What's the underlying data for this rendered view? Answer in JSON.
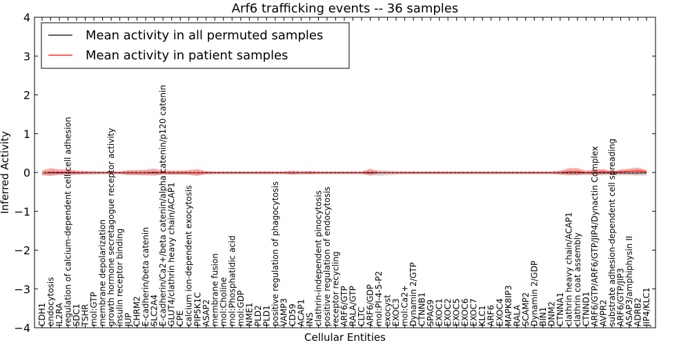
{
  "chart_data": {
    "type": "line",
    "title": "Arf6 trafficking events -- 36 samples",
    "xlabel": "Cellular Entities",
    "ylabel": "Inferred Activity",
    "ylim": [
      -4,
      4
    ],
    "yticks": [
      -4,
      -3,
      -2,
      -1,
      0,
      1,
      2,
      3,
      4
    ],
    "ytick_labels": [
      "−4",
      "−3",
      "−2",
      "−1",
      "0",
      "1",
      "2",
      "3",
      "4"
    ],
    "grid": false,
    "legend_position": "top-left",
    "categories": [
      "CDH1",
      "endocytosis",
      "IL2RA",
      "regulation of calcium-dependent cell-cell adhesion",
      "SDC1",
      "TSHR",
      "mol:GTP",
      "membrane depolarization",
      "growth hormone secretagogue receptor activity",
      "insulin receptor binding",
      "JUP",
      "CHRM2",
      "E-cadherin/beta catenin",
      "SLC2A4",
      "E-cadherin/Ca2+/beta catenin/alpha catenin/p120 catenin",
      "GLUT4/clathrin heavy chain/ACAP1",
      "CPE",
      "calcium ion-dependent exocytosis",
      "PIP5K1C",
      "ASAP2",
      "membrane fusion",
      "mol:Choline",
      "mol:Phosphatidic acid",
      "mol:GDP",
      "NME1",
      "PLD2",
      "PLD1",
      "positive regulation of phagocytosis",
      "VAMP3",
      "CD59",
      "ACAP1",
      "INS",
      "clathrin-independent pinocytosis",
      "positive regulation of endocytosis",
      "receptor recycling",
      "ARF6/GTP",
      "RALA/GTP",
      "CLTC",
      "ARF6/GDP",
      "mol:PI-4-5-P2",
      "exocyst",
      "EXOC3",
      "mol:Ca2+",
      "Dynamin 2/GTP",
      "CTNNB1",
      "SPAG9",
      "EXOC1",
      "EXOC2",
      "EXOC5",
      "EXOC6",
      "EXOC7",
      "KLC1",
      "ARF6",
      "EXOC4",
      "MAPK8IP3",
      "RALA",
      "SCAMP2",
      "Dynamin 2/GDP",
      "BIN1",
      "DNM2",
      "CTNNA1",
      "clathrin heavy chain/ACAP1",
      "clathrin coat assembly",
      "CTNND1",
      "ARF6/GTP/ARF6/GTP/JIP4/Dynactin Complex",
      "AVPR2",
      "substrate adhesion-dependent cell spreading",
      "ARF6/GTP/JIP3",
      "ASAP3/amphiphysin II",
      "ADRB2",
      "JIP4/KLC1"
    ],
    "series": [
      {
        "name": "Mean activity in all permuted samples",
        "color": "#000000",
        "band_color": "#b0b0b0",
        "values": [
          -0.01,
          -0.01,
          -0.01,
          -0.01,
          -0.01,
          -0.01,
          -0.01,
          -0.01,
          -0.01,
          -0.01,
          -0.01,
          -0.01,
          -0.01,
          -0.01,
          -0.01,
          -0.01,
          -0.01,
          -0.01,
          -0.01,
          -0.01,
          -0.01,
          -0.01,
          -0.01,
          -0.01,
          -0.01,
          -0.01,
          -0.01,
          -0.01,
          -0.01,
          -0.01,
          -0.01,
          -0.01,
          -0.01,
          -0.01,
          -0.01,
          -0.01,
          -0.01,
          -0.01,
          -0.01,
          -0.01,
          -0.01,
          -0.01,
          -0.01,
          -0.01,
          -0.01,
          -0.01,
          -0.01,
          -0.01,
          -0.01,
          -0.01,
          -0.01,
          -0.01,
          -0.01,
          -0.01,
          -0.01,
          -0.01,
          -0.01,
          -0.01,
          -0.01,
          -0.01,
          -0.01,
          -0.01,
          -0.01,
          -0.01,
          -0.01,
          -0.01,
          -0.01,
          -0.01,
          -0.01,
          -0.01,
          -0.01
        ],
        "band": [
          0.06,
          0.06,
          0.05,
          0.05,
          0.05,
          0.05,
          0.05,
          0.04,
          0.04,
          0.04,
          0.06,
          0.06,
          0.05,
          0.05,
          0.05,
          0.05,
          0.05,
          0.04,
          0.05,
          0.05,
          0.04,
          0.04,
          0.04,
          0.04,
          0.04,
          0.04,
          0.04,
          0.04,
          0.04,
          0.05,
          0.05,
          0.04,
          0.04,
          0.04,
          0.04,
          0.04,
          0.04,
          0.04,
          0.06,
          0.07,
          0.06,
          0.05,
          0.04,
          0.04,
          0.04,
          0.04,
          0.04,
          0.04,
          0.04,
          0.04,
          0.04,
          0.04,
          0.04,
          0.04,
          0.04,
          0.04,
          0.04,
          0.04,
          0.04,
          0.04,
          0.05,
          0.05,
          0.05,
          0.06,
          0.06,
          0.06,
          0.06,
          0.06,
          0.06,
          0.07,
          0.07
        ]
      },
      {
        "name": "Mean activity in patient samples",
        "color": "#ff0000",
        "band_color": "#f08080",
        "values": [
          -0.01,
          0.01,
          0.01,
          0.01,
          0.0,
          0.0,
          0.0,
          0.0,
          0.0,
          0.0,
          0.0,
          0.0,
          0.0,
          0.01,
          0.0,
          0.0,
          0.0,
          0.0,
          0.0,
          0.0,
          0.0,
          0.0,
          0.0,
          0.0,
          0.0,
          0.0,
          0.0,
          0.0,
          0.0,
          0.0,
          0.0,
          0.0,
          0.0,
          0.0,
          0.0,
          0.0,
          0.0,
          0.0,
          0.01,
          0.0,
          0.0,
          0.0,
          0.0,
          0.0,
          0.0,
          0.0,
          0.0,
          0.0,
          0.0,
          0.0,
          0.0,
          0.0,
          0.0,
          0.0,
          0.0,
          0.0,
          0.0,
          0.0,
          0.0,
          0.0,
          0.0,
          0.02,
          0.02,
          0.0,
          0.01,
          0.02,
          0.0,
          0.02,
          0.03,
          0.04,
          0.02
        ],
        "band": [
          0.06,
          0.1,
          0.07,
          0.07,
          0.05,
          0.03,
          0.02,
          0.02,
          0.02,
          0.02,
          0.06,
          0.06,
          0.07,
          0.09,
          0.05,
          0.05,
          0.05,
          0.06,
          0.09,
          0.03,
          0.02,
          0.02,
          0.02,
          0.02,
          0.02,
          0.02,
          0.03,
          0.02,
          0.02,
          0.05,
          0.02,
          0.04,
          0.02,
          0.02,
          0.02,
          0.02,
          0.02,
          0.02,
          0.09,
          0.02,
          0.02,
          0.02,
          0.02,
          0.02,
          0.02,
          0.02,
          0.02,
          0.02,
          0.02,
          0.02,
          0.02,
          0.02,
          0.02,
          0.02,
          0.02,
          0.02,
          0.02,
          0.02,
          0.02,
          0.02,
          0.05,
          0.09,
          0.09,
          0.04,
          0.07,
          0.07,
          0.03,
          0.06,
          0.07,
          0.09,
          0.04
        ]
      }
    ]
  }
}
